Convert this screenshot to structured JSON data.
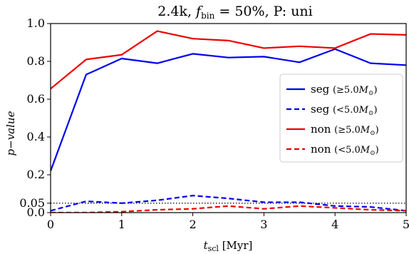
{
  "chart_data": {
    "type": "line",
    "title": "2.4k, f_bin = 50%, P: uni",
    "title_parts": {
      "prefix": "2.4k, ",
      "f": "f",
      "sub": "bin",
      "eq": " = 50%, P: uni"
    },
    "xlabel": {
      "t": "t",
      "sub": "scl",
      "unit": " [Myr]"
    },
    "ylabel": "p−value",
    "xlim": [
      0,
      5
    ],
    "ylim": [
      0,
      1.0
    ],
    "xticks": [
      0,
      1,
      2,
      3,
      4,
      5
    ],
    "yticks": [
      {
        "value": 0.0,
        "label": "0.0"
      },
      {
        "value": 0.05,
        "label": "0.05"
      },
      {
        "value": 0.2,
        "label": "0.2"
      },
      {
        "value": 0.4,
        "label": "0.4"
      },
      {
        "value": 0.6,
        "label": "0.6"
      },
      {
        "value": 0.8,
        "label": "0.8"
      },
      {
        "value": 1.0,
        "label": "1.0"
      }
    ],
    "reference_line": {
      "y": 0.05,
      "style": "dotted",
      "color": "#000000"
    },
    "grid": false,
    "legend_position": "right",
    "x": [
      0,
      0.5,
      1,
      1.5,
      2,
      2.5,
      3,
      3.5,
      4,
      4.5,
      5
    ],
    "series": [
      {
        "name": "seg (≥5.0M⊙)",
        "label_main": "seg",
        "label_rel": "(≥5.0",
        "label_end": ")",
        "color": "#0000ee",
        "dash": "solid",
        "values": [
          0.22,
          0.73,
          0.815,
          0.79,
          0.84,
          0.82,
          0.825,
          0.795,
          0.865,
          0.79,
          0.78
        ]
      },
      {
        "name": "seg (<5.0M⊙)",
        "label_main": "seg",
        "label_rel": "(<5.0",
        "label_end": ")",
        "color": "#0000ee",
        "dash": "dashed",
        "values": [
          0.01,
          0.06,
          0.05,
          0.065,
          0.09,
          0.075,
          0.055,
          0.055,
          0.035,
          0.03,
          0.01
        ]
      },
      {
        "name": "non (≥5.0M⊙)",
        "label_main": "non",
        "label_rel": "(≥5.0",
        "label_end": ")",
        "color": "#ee0000",
        "dash": "solid",
        "values": [
          0.655,
          0.81,
          0.835,
          0.96,
          0.92,
          0.91,
          0.87,
          0.88,
          0.87,
          0.945,
          0.94
        ]
      },
      {
        "name": "non (<5.0M⊙)",
        "label_main": "non",
        "label_rel": "(<5.0",
        "label_end": ")",
        "color": "#ee0000",
        "dash": "dashed",
        "values": [
          0.0,
          0.0,
          0.005,
          0.015,
          0.02,
          0.035,
          0.02,
          0.035,
          0.025,
          0.015,
          0.01
        ]
      }
    ]
  }
}
